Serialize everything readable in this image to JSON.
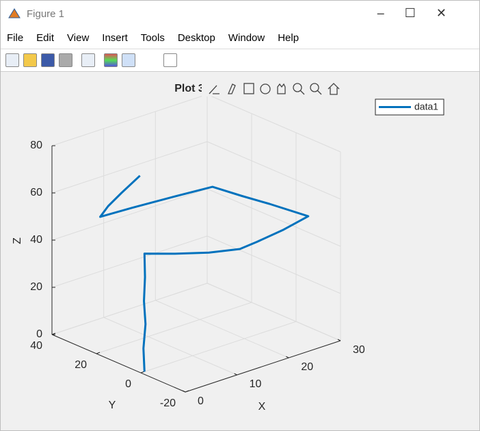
{
  "window": {
    "title": "Figure 1",
    "menu": [
      "File",
      "Edit",
      "View",
      "Insert",
      "Tools",
      "Desktop",
      "Window",
      "Help"
    ]
  },
  "chart_data": {
    "type": "line3d",
    "title": "Plot 3",
    "xlabel": "X",
    "ylabel": "Y",
    "zlabel": "Z",
    "xlim": [
      0,
      30
    ],
    "ylim": [
      -20,
      40
    ],
    "zlim": [
      0,
      80
    ],
    "xticks": [
      0,
      10,
      20,
      30
    ],
    "yticks": [
      -20,
      0,
      20,
      40
    ],
    "zticks": [
      0,
      20,
      40,
      60,
      80
    ],
    "grid": true,
    "legend": "northeast",
    "series": [
      {
        "name": "data1",
        "color": "#0072bd",
        "x": [
          0.7,
          0.5,
          0.9,
          0.6,
          0.8,
          0.7,
          4,
          8,
          12.3,
          16,
          22,
          28.1,
          27,
          26,
          25.1,
          18,
          11,
          5.2,
          7,
          10,
          14
        ],
        "y": [
          0,
          0,
          0,
          0,
          0,
          0,
          -6,
          -12,
          -15.9,
          -15,
          -13,
          -9.9,
          5,
          15,
          26.2,
          28,
          29.5,
          30.4,
          31,
          32,
          33
        ],
        "z": [
          0,
          10,
          20,
          30,
          40,
          50,
          50,
          50,
          50,
          50,
          50,
          50,
          50,
          50,
          50,
          50,
          50,
          50,
          53,
          56,
          60
        ]
      }
    ]
  }
}
